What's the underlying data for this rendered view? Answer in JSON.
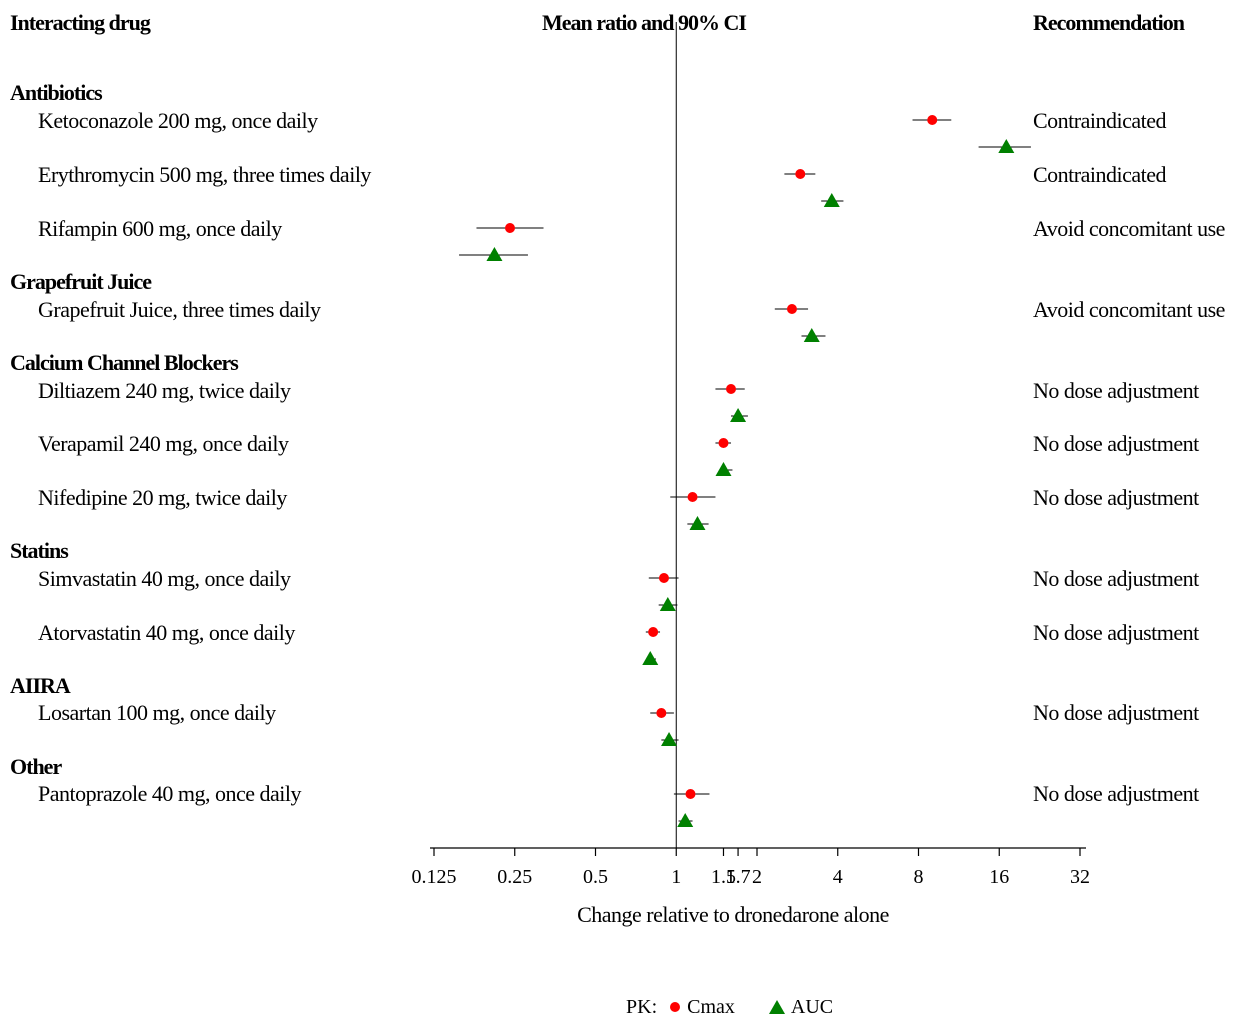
{
  "headers": {
    "drug": "Interacting drug",
    "ci": "Mean ratio and 90% CI",
    "recommendation": "Recommendation"
  },
  "groups": [
    {
      "label": "Antibiotics"
    },
    {
      "label": "Grapefruit Juice"
    },
    {
      "label": "Calcium Channel Blockers"
    },
    {
      "label": "Statins"
    },
    {
      "label": "AIIRA"
    },
    {
      "label": "Other"
    }
  ],
  "rows": [
    {
      "label": "Ketoconazole 200 mg, once daily",
      "recommendation": "Contraindicated"
    },
    {
      "label": "Erythromycin 500 mg, three times daily",
      "recommendation": "Contraindicated"
    },
    {
      "label": "Rifampin 600 mg, once daily",
      "recommendation": "Avoid concomitant use"
    },
    {
      "label": "Grapefruit Juice, three times daily",
      "recommendation": "Avoid concomitant use"
    },
    {
      "label": "Diltiazem 240 mg, twice daily",
      "recommendation": "No dose adjustment"
    },
    {
      "label": "Verapamil 240 mg, once daily",
      "recommendation": "No dose adjustment"
    },
    {
      "label": "Nifedipine 20 mg, twice daily",
      "recommendation": "No dose adjustment"
    },
    {
      "label": "Simvastatin 40 mg, once daily",
      "recommendation": "No dose adjustment"
    },
    {
      "label": "Atorvastatin 40 mg, once daily",
      "recommendation": "No dose adjustment"
    },
    {
      "label": "Losartan 100 mg, once daily",
      "recommendation": "No dose adjustment"
    },
    {
      "label": "Pantoprazole 40 mg, once daily",
      "recommendation": "No dose adjustment"
    }
  ],
  "legend": {
    "prefix": "PK:",
    "cmax": "Cmax",
    "auc": "AUC",
    "cmax_color": "#ff0000",
    "auc_color": "#008000"
  },
  "chart_data": {
    "type": "forest",
    "xlabel": "Change relative to dronedarone alone",
    "x_scale": "log2",
    "xlim": [
      0.125,
      32
    ],
    "reference_line": 1,
    "ticks": [
      {
        "value": 0.125,
        "label": "0.125"
      },
      {
        "value": 0.25,
        "label": "0.25"
      },
      {
        "value": 0.5,
        "label": "0.5"
      },
      {
        "value": 1,
        "label": "1"
      },
      {
        "value": 1.5,
        "label": "1.5"
      },
      {
        "value": 1.7,
        "label": "1.7"
      },
      {
        "value": 2,
        "label": "2"
      },
      {
        "value": 4,
        "label": "4"
      },
      {
        "value": 8,
        "label": "8"
      },
      {
        "value": 16,
        "label": "16"
      },
      {
        "value": 32,
        "label": "32"
      }
    ],
    "series": [
      {
        "name": "Cmax",
        "marker": "circle",
        "color": "#ff0000"
      },
      {
        "name": "AUC",
        "marker": "triangle",
        "color": "#008000"
      }
    ],
    "points": [
      {
        "drug": "Ketoconazole 200 mg, once daily",
        "cmax": [
          9.0,
          7.6,
          10.6
        ],
        "auc": [
          17.0,
          13.4,
          21.0
        ]
      },
      {
        "drug": "Erythromycin 500 mg, three times daily",
        "cmax": [
          2.9,
          2.53,
          3.3
        ],
        "auc": [
          3.8,
          3.47,
          4.2
        ]
      },
      {
        "drug": "Rifampin 600 mg, once daily",
        "cmax": [
          0.24,
          0.18,
          0.32
        ],
        "auc": [
          0.21,
          0.155,
          0.28
        ]
      },
      {
        "drug": "Grapefruit Juice, three times daily",
        "cmax": [
          2.7,
          2.33,
          3.1
        ],
        "auc": [
          3.2,
          2.93,
          3.6
        ]
      },
      {
        "drug": "Diltiazem 240 mg, twice daily",
        "cmax": [
          1.6,
          1.4,
          1.8
        ],
        "auc": [
          1.7,
          1.6,
          1.85
        ]
      },
      {
        "drug": "Verapamil 240 mg, once daily",
        "cmax": [
          1.5,
          1.4,
          1.6
        ],
        "auc": [
          1.5,
          1.45,
          1.62
        ]
      },
      {
        "drug": "Nifedipine 20 mg, twice daily",
        "cmax": [
          1.15,
          0.95,
          1.4
        ],
        "auc": [
          1.2,
          1.1,
          1.32
        ]
      },
      {
        "drug": "Simvastatin 40 mg, once daily",
        "cmax": [
          0.9,
          0.79,
          1.02
        ],
        "auc": [
          0.93,
          0.86,
          1.01
        ]
      },
      {
        "drug": "Atorvastatin 40 mg, once daily",
        "cmax": [
          0.82,
          0.77,
          0.87
        ],
        "auc": [
          0.8,
          0.78,
          0.84
        ]
      },
      {
        "drug": "Losartan 100 mg, once daily",
        "cmax": [
          0.88,
          0.8,
          0.98
        ],
        "auc": [
          0.94,
          0.88,
          1.02
        ]
      },
      {
        "drug": "Pantoprazole 40 mg, once daily",
        "cmax": [
          1.13,
          0.98,
          1.33
        ],
        "auc": [
          1.08,
          1.02,
          1.15
        ]
      }
    ]
  }
}
